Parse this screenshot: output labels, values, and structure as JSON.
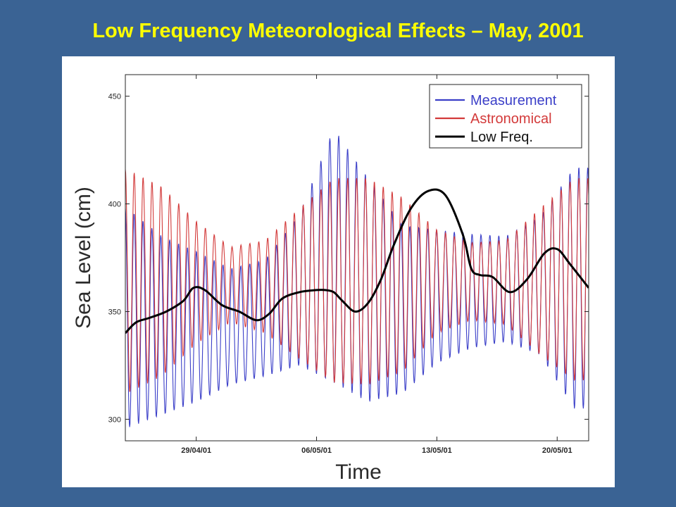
{
  "slide": {
    "title": "Low Frequency Meteorological Effects – May, 2001"
  },
  "chart_data": {
    "type": "line",
    "title": "",
    "xlabel": "Time",
    "ylabel": "Sea Level (cm)",
    "xlim": [
      "2001-04-24T21:00",
      "2001-05-21T20:00"
    ],
    "ylim": [
      290,
      460
    ],
    "x_ticks": [
      {
        "date": "2001-04-29",
        "label": "29/04/01"
      },
      {
        "date": "2001-05-06",
        "label": "06/05/01"
      },
      {
        "date": "2001-05-13",
        "label": "13/05/01"
      },
      {
        "date": "2001-05-20",
        "label": "20/05/01"
      }
    ],
    "y_ticks": [
      300,
      350,
      400,
      450
    ],
    "legend_position": "top-right",
    "grid": false,
    "series": [
      {
        "name": "Measurement",
        "color": "#3b3fc8",
        "kind": "tidal",
        "x": [
          "2001-04-25",
          "2001-04-27",
          "2001-04-29",
          "2001-05-01",
          "2001-05-03",
          "2001-05-05",
          "2001-05-07",
          "2001-05-09",
          "2001-05-11",
          "2001-05-13",
          "2001-05-15",
          "2001-05-17",
          "2001-05-19",
          "2001-05-21"
        ],
        "highs": [
          398,
          385,
          378,
          370,
          374,
          395,
          435,
          412,
          390,
          388,
          386,
          385,
          394,
          417
        ],
        "lows": [
          296,
          302,
          308,
          316,
          320,
          325,
          317,
          308,
          312,
          326,
          333,
          336,
          330,
          305
        ]
      },
      {
        "name": "Astronomical",
        "color": "#d33a3a",
        "kind": "tidal",
        "x": [
          "2001-04-25",
          "2001-04-27",
          "2001-04-29",
          "2001-05-01",
          "2001-05-03",
          "2001-05-05",
          "2001-05-07",
          "2001-05-09",
          "2001-05-11",
          "2001-05-13",
          "2001-05-15",
          "2001-05-17",
          "2001-05-19",
          "2001-05-21"
        ],
        "highs": [
          416,
          408,
          392,
          380,
          383,
          398,
          412,
          412,
          403,
          388,
          382,
          383,
          398,
          412
        ],
        "lows": [
          312,
          320,
          335,
          345,
          340,
          328,
          317,
          316,
          322,
          340,
          346,
          344,
          330,
          318
        ]
      },
      {
        "name": "Low Freq.",
        "color": "#000000",
        "kind": "smooth",
        "x": [
          "2001-04-24T21:00",
          "2001-04-25T12:00",
          "2001-04-26T06:00",
          "2001-04-27T06:00",
          "2001-04-28T06:00",
          "2001-04-28T20:00",
          "2001-04-29T12:00",
          "2001-04-30T12:00",
          "2001-05-01T12:00",
          "2001-05-02T12:00",
          "2001-05-03T06:00",
          "2001-05-04T00:00",
          "2001-05-05T00:00",
          "2001-05-06T00:00",
          "2001-05-06T12:00",
          "2001-05-07T00:00",
          "2001-05-07T12:00",
          "2001-05-08T06:00",
          "2001-05-09T00:00",
          "2001-05-09T18:00",
          "2001-05-10T12:00",
          "2001-05-11T12:00",
          "2001-05-12T12:00",
          "2001-05-13T12:00",
          "2001-05-14T12:00",
          "2001-05-15T00:00",
          "2001-05-15T12:00",
          "2001-05-16T06:00",
          "2001-05-17T06:00",
          "2001-05-18T06:00",
          "2001-05-19T06:00",
          "2001-05-20T00:00",
          "2001-05-20T18:00",
          "2001-05-21T20:00"
        ],
        "y": [
          340,
          345,
          347,
          350,
          355,
          361,
          360,
          353,
          350,
          346,
          349,
          356,
          359,
          360,
          360,
          359,
          355,
          350,
          354,
          365,
          381,
          398,
          406,
          404,
          386,
          370,
          367,
          366,
          359,
          365,
          377,
          379,
          372,
          361
        ]
      }
    ]
  }
}
